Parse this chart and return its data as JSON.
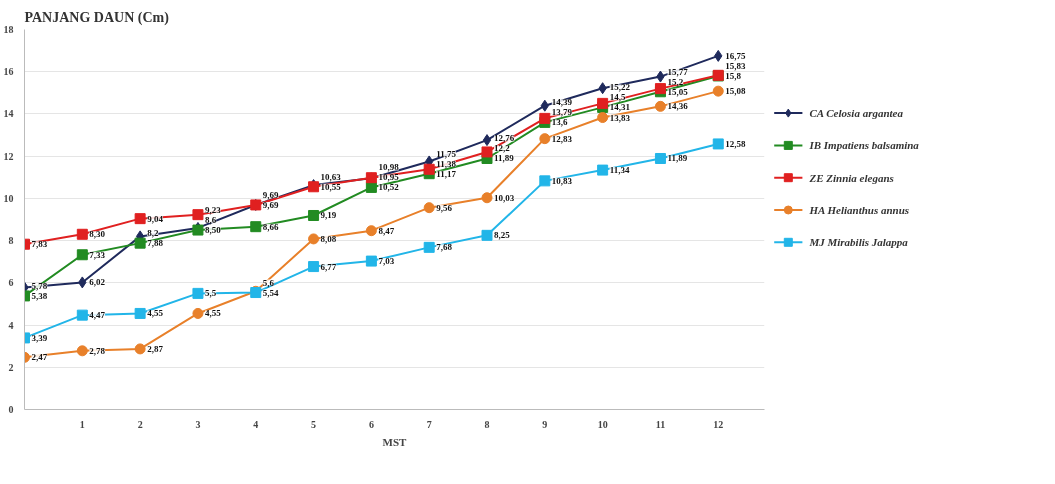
{
  "chart_data": {
    "type": "line",
    "title": "PANJANG DAUN (Cm)",
    "xlabel": "MST",
    "x": [
      0,
      1,
      2,
      3,
      4,
      5,
      6,
      7,
      8,
      9,
      10,
      11,
      12
    ],
    "series": [
      {
        "name": "CA Celosia argantea",
        "color": "#1f2a5c",
        "marker": "diamond",
        "values": [
          5.78,
          6.02,
          8.2,
          8.6,
          9.69,
          10.63,
          10.95,
          11.75,
          12.76,
          14.39,
          15.22,
          15.77,
          16.75
        ],
        "value_labels": [
          "5,78",
          "6,02",
          "8,2",
          "8,6",
          "9,69",
          "10,63",
          "10,95",
          "11,75",
          "12,76",
          "14,39",
          "15,22",
          "15,77",
          "16,75"
        ]
      },
      {
        "name": "IB Impatiens balsamina",
        "color": "#228b22",
        "marker": "square",
        "values": [
          5.38,
          7.33,
          7.88,
          8.5,
          8.66,
          9.19,
          10.52,
          11.17,
          11.89,
          13.6,
          14.31,
          15.05,
          15.8
        ],
        "value_labels": [
          "5,38",
          "7,33",
          "7,88",
          "8,50",
          "8,66",
          "9,19",
          "10,52",
          "11,17",
          "11,89",
          "13,6",
          "14,31",
          "15,05",
          "15,8"
        ]
      },
      {
        "name": "ZE Zinnia elegans",
        "color": "#e02020",
        "marker": "square",
        "values": [
          7.83,
          8.3,
          9.04,
          9.23,
          9.69,
          10.55,
          10.98,
          11.38,
          12.2,
          13.79,
          14.5,
          15.2,
          15.83
        ],
        "value_labels": [
          "7,83",
          "8,30",
          "9,04",
          "9,23",
          "9,69",
          "10,55",
          "10,98",
          "11,38",
          "12,2",
          "13,79",
          "14,5",
          "15,2",
          "15,83"
        ]
      },
      {
        "name": "HA Helianthus annus",
        "color": "#e8802a",
        "marker": "circle",
        "values": [
          2.47,
          2.78,
          2.87,
          4.55,
          5.6,
          8.08,
          8.47,
          9.56,
          10.03,
          12.83,
          13.83,
          14.36,
          15.08
        ],
        "value_labels": [
          "2,47",
          "2,78",
          "2,87",
          "4,55",
          "5,6",
          "8,08",
          "8,47",
          "9,56",
          "10,03",
          "12,83",
          "13,83",
          "14,36",
          "15,08"
        ]
      },
      {
        "name": "MJ Mirabilis Jalappa",
        "color": "#22b5e8",
        "marker": "square",
        "values": [
          3.39,
          4.47,
          4.55,
          5.5,
          5.54,
          6.77,
          7.03,
          7.68,
          8.25,
          10.83,
          11.34,
          11.89,
          12.58
        ],
        "value_labels": [
          "3,39",
          "4,47",
          "4,55",
          "5,5",
          "5,54",
          "6,77",
          "7,03",
          "7,68",
          "8,25",
          "10,83",
          "11,34",
          "11,89",
          "12,58"
        ]
      }
    ],
    "xlim": [
      0,
      12.8
    ],
    "xticks": [
      1,
      2,
      3,
      4,
      5,
      6,
      7,
      8,
      9,
      10,
      11,
      12
    ],
    "ylim": [
      0,
      18
    ],
    "yticks": [
      0,
      2,
      4,
      6,
      8,
      10,
      12,
      14,
      16,
      18
    ],
    "grid": "y",
    "legend": "right",
    "line_style": "solid"
  }
}
